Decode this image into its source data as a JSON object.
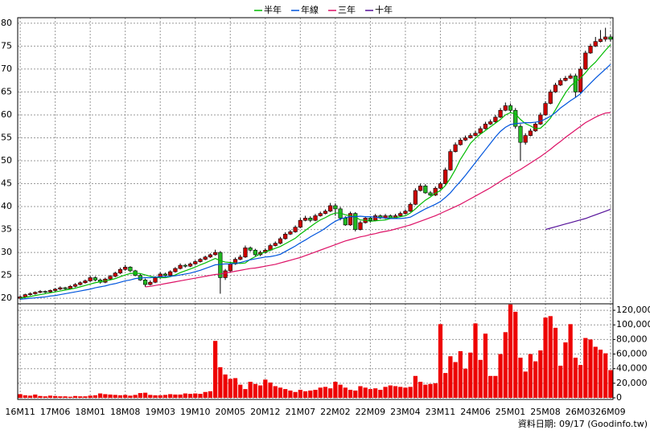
{
  "chart_data": {
    "type": "candlestick",
    "footer": "資料日期: 09/17 (Goodinfo.tw)",
    "grid": true,
    "up_color": "#cc0000",
    "down_color": "#22bb22",
    "ylim": [
      18.8,
      81.2
    ],
    "yticks": [
      20,
      25,
      30,
      35,
      40,
      45,
      50,
      55,
      60,
      65,
      70,
      75,
      80
    ],
    "categories": [
      "16M11",
      null,
      null,
      null,
      null,
      null,
      null,
      "17M06",
      null,
      null,
      null,
      null,
      null,
      null,
      "18M01",
      null,
      null,
      null,
      null,
      null,
      null,
      "18M08",
      null,
      null,
      null,
      null,
      null,
      null,
      "19M03",
      null,
      null,
      null,
      null,
      null,
      null,
      "19M10",
      null,
      null,
      null,
      null,
      null,
      null,
      "20M05",
      null,
      null,
      null,
      null,
      null,
      null,
      "20M12",
      null,
      null,
      null,
      null,
      null,
      null,
      "21M07",
      null,
      null,
      null,
      null,
      null,
      null,
      "22M02",
      null,
      null,
      null,
      null,
      null,
      null,
      "22M09",
      null,
      null,
      null,
      null,
      null,
      null,
      "23M04",
      null,
      null,
      null,
      null,
      null,
      null,
      "23M11",
      null,
      null,
      null,
      null,
      null,
      null,
      "24M06",
      null,
      null,
      null,
      null,
      null,
      null,
      "25M01",
      null,
      null,
      null,
      null,
      null,
      null,
      "25M08",
      null,
      null,
      null,
      null,
      null,
      null,
      "26M03",
      null,
      null,
      null,
      null,
      null,
      "26M09"
    ],
    "open": [
      20.0,
      20.3,
      20.8,
      21.0,
      21.3,
      21.5,
      21.4,
      21.7,
      22.0,
      22.3,
      22.1,
      22.6,
      23.0,
      23.4,
      23.8,
      24.5,
      24.0,
      23.5,
      24.2,
      24.8,
      25.5,
      26.3,
      26.8,
      26.0,
      25.0,
      24.0,
      23.0,
      23.5,
      24.5,
      25.3,
      25.0,
      25.8,
      26.5,
      27.2,
      27.0,
      27.5,
      28.0,
      28.5,
      29.0,
      29.5,
      30.0,
      24.5,
      26.0,
      27.5,
      28.5,
      29.0,
      31.0,
      30.5,
      29.5,
      30.0,
      30.5,
      31.5,
      32.0,
      33.0,
      34.0,
      34.5,
      35.5,
      37.0,
      37.5,
      37.0,
      38.0,
      38.5,
      39.0,
      40.2,
      39.5,
      37.5,
      36.0,
      38.5,
      35.0,
      36.5,
      37.5,
      37.0,
      38.0,
      37.5,
      38.0,
      37.5,
      38.0,
      38.5,
      39.0,
      40.5,
      43.5,
      44.5,
      43.0,
      42.5,
      44.0,
      45.0,
      48.0,
      52.0,
      53.5,
      54.5,
      55.0,
      55.5,
      56.0,
      57.0,
      58.0,
      58.5,
      59.5,
      61.0,
      62.0,
      61.0,
      57.5,
      54.0,
      55.5,
      56.5,
      58.0,
      60.0,
      62.5,
      65.0,
      66.5,
      67.5,
      68.0,
      68.5,
      65.0,
      70.0,
      73.5,
      75.0,
      76.0,
      76.5,
      77.0
    ],
    "high": [
      20.6,
      21.0,
      21.3,
      21.5,
      21.8,
      21.7,
      21.9,
      22.2,
      22.6,
      22.5,
      22.9,
      23.3,
      23.7,
      24.1,
      24.9,
      24.8,
      24.3,
      24.5,
      25.1,
      25.8,
      26.7,
      27.3,
      27.0,
      26.2,
      25.3,
      24.3,
      23.9,
      24.8,
      25.7,
      25.6,
      26.1,
      26.8,
      27.6,
      27.5,
      27.8,
      28.3,
      28.8,
      29.3,
      29.8,
      30.6,
      30.3,
      26.4,
      28.0,
      28.9,
      29.5,
      31.5,
      31.3,
      30.8,
      30.4,
      30.9,
      31.9,
      32.4,
      33.4,
      34.4,
      34.9,
      35.9,
      37.5,
      38.0,
      37.9,
      38.4,
      38.9,
      39.4,
      40.8,
      40.7,
      39.9,
      37.9,
      38.9,
      38.8,
      36.9,
      37.9,
      37.9,
      38.4,
      38.3,
      38.4,
      38.3,
      38.4,
      38.9,
      39.4,
      40.9,
      44.0,
      45.0,
      44.9,
      43.4,
      44.4,
      45.4,
      48.5,
      52.5,
      54.0,
      55.0,
      55.5,
      56.0,
      56.5,
      57.5,
      58.5,
      59.0,
      60.0,
      61.5,
      62.7,
      62.5,
      61.5,
      58.0,
      56.0,
      57.0,
      58.5,
      60.5,
      63.0,
      65.5,
      67.0,
      68.0,
      68.5,
      69.0,
      69.0,
      70.5,
      74.0,
      75.5,
      77.0,
      78.5,
      79.0,
      77.5
    ],
    "low": [
      19.6,
      20.1,
      20.6,
      20.8,
      21.1,
      21.1,
      21.2,
      21.5,
      21.8,
      21.8,
      21.9,
      22.4,
      22.8,
      23.2,
      23.6,
      23.7,
      23.2,
      23.3,
      24.0,
      24.6,
      25.3,
      26.0,
      25.7,
      24.8,
      23.8,
      22.5,
      22.8,
      23.3,
      24.3,
      24.8,
      24.8,
      25.6,
      26.3,
      26.7,
      26.8,
      27.3,
      27.8,
      28.3,
      28.8,
      29.3,
      21.0,
      24.0,
      25.6,
      27.3,
      28.3,
      28.8,
      30.2,
      29.2,
      29.2,
      29.8,
      30.3,
      31.3,
      31.8,
      32.8,
      33.8,
      34.3,
      35.3,
      36.8,
      36.6,
      36.8,
      37.8,
      38.3,
      38.8,
      38.0,
      37.0,
      35.8,
      35.8,
      34.6,
      34.8,
      36.3,
      36.5,
      36.8,
      37.3,
      37.3,
      37.3,
      37.3,
      37.8,
      38.3,
      38.8,
      40.3,
      43.3,
      42.8,
      42.3,
      42.3,
      43.8,
      44.8,
      47.8,
      51.8,
      53.3,
      54.3,
      54.8,
      55.3,
      55.8,
      56.8,
      57.8,
      58.3,
      59.3,
      60.8,
      60.5,
      57.0,
      50.0,
      53.5,
      55.3,
      56.3,
      57.8,
      59.8,
      62.3,
      64.8,
      66.3,
      67.3,
      67.8,
      63.8,
      64.8,
      69.8,
      73.3,
      74.8,
      75.8,
      76.0,
      76.0
    ],
    "close": [
      20.3,
      20.8,
      21.0,
      21.3,
      21.5,
      21.4,
      21.7,
      22.0,
      22.3,
      22.1,
      22.6,
      23.0,
      23.4,
      23.8,
      24.5,
      24.0,
      23.5,
      24.2,
      24.8,
      25.5,
      26.3,
      26.8,
      26.0,
      25.0,
      24.0,
      23.0,
      23.5,
      24.5,
      25.3,
      25.0,
      25.8,
      26.5,
      27.2,
      27.0,
      27.5,
      28.0,
      28.5,
      29.0,
      29.5,
      30.0,
      24.5,
      26.0,
      27.5,
      28.5,
      29.0,
      31.0,
      30.5,
      29.5,
      30.0,
      30.5,
      31.5,
      32.0,
      33.0,
      34.0,
      34.5,
      35.5,
      37.0,
      37.5,
      37.0,
      38.0,
      38.5,
      39.0,
      40.2,
      39.5,
      37.5,
      36.0,
      38.5,
      35.0,
      36.5,
      37.5,
      37.0,
      38.0,
      37.5,
      38.0,
      37.5,
      38.0,
      38.5,
      39.0,
      40.5,
      43.5,
      44.5,
      43.0,
      42.5,
      44.0,
      45.0,
      48.0,
      52.0,
      53.5,
      54.5,
      55.0,
      55.5,
      56.0,
      57.0,
      58.0,
      58.5,
      59.5,
      61.0,
      62.0,
      61.0,
      57.5,
      54.0,
      55.5,
      56.5,
      58.0,
      60.0,
      62.5,
      65.0,
      66.5,
      67.5,
      68.0,
      68.5,
      65.0,
      70.0,
      73.5,
      75.0,
      76.0,
      76.5,
      77.0,
      76.5
    ],
    "series": [
      {
        "name": "半年",
        "color": "#00bb00",
        "values": [
          20.0,
          20.2,
          20.4,
          20.6,
          20.8,
          21.0,
          21.2,
          21.4,
          21.6,
          21.8,
          22.0,
          22.2,
          22.5,
          22.8,
          23.1,
          23.4,
          23.6,
          23.8,
          24.0,
          24.3,
          24.7,
          25.1,
          25.4,
          25.5,
          25.4,
          25.1,
          24.8,
          24.6,
          24.5,
          24.5,
          24.7,
          25.1,
          25.6,
          26.0,
          26.4,
          26.8,
          27.3,
          27.7,
          28.2,
          28.7,
          28.2,
          27.9,
          27.8,
          27.7,
          27.6,
          27.7,
          28.5,
          29.1,
          29.7,
          30.1,
          30.5,
          30.9,
          31.3,
          31.9,
          32.5,
          33.1,
          34.0,
          34.8,
          35.6,
          36.4,
          37.1,
          37.6,
          38.2,
          38.6,
          38.6,
          38.2,
          38.0,
          37.7,
          37.1,
          37.0,
          36.8,
          36.9,
          37.0,
          37.1,
          37.4,
          37.6,
          37.8,
          38.0,
          38.6,
          39.5,
          40.5,
          41.4,
          42.1,
          42.9,
          43.5,
          44.6,
          46.2,
          48.1,
          50.3,
          52.0,
          53.8,
          54.9,
          55.8,
          56.6,
          57.4,
          58.2,
          59.0,
          60.0,
          60.5,
          60.2,
          59.0,
          58.1,
          57.6,
          57.0,
          57.1,
          58.1,
          59.3,
          61.1,
          63.0,
          64.8,
          66.3,
          67.2,
          68.0,
          69.2,
          70.5,
          71.5,
          72.8,
          74.1,
          75.3
        ]
      },
      {
        "name": "年線",
        "color": "#0055dd",
        "values": [
          19.8,
          19.9,
          20.0,
          20.1,
          20.2,
          20.3,
          20.5,
          20.6,
          20.8,
          21.0,
          21.2,
          21.4,
          21.6,
          21.8,
          22.0,
          22.3,
          22.5,
          22.7,
          23.0,
          23.2,
          23.5,
          23.8,
          24.0,
          24.3,
          24.4,
          24.5,
          24.5,
          24.6,
          24.7,
          24.7,
          24.8,
          24.9,
          25.1,
          25.3,
          25.5,
          25.8,
          26.1,
          26.5,
          26.9,
          27.3,
          27.4,
          27.5,
          27.5,
          27.6,
          27.8,
          28.1,
          28.4,
          28.6,
          28.8,
          29.0,
          29.1,
          29.3,
          29.6,
          30.2,
          30.8,
          31.4,
          32.1,
          32.7,
          33.4,
          34.0,
          34.6,
          35.3,
          36.1,
          36.8,
          37.3,
          37.6,
          37.8,
          37.8,
          37.9,
          37.8,
          37.8,
          37.7,
          37.6,
          37.5,
          37.4,
          37.4,
          37.4,
          37.5,
          37.7,
          38.3,
          38.9,
          39.5,
          40.0,
          40.5,
          41.1,
          42.0,
          43.0,
          44.3,
          45.5,
          46.8,
          48.2,
          49.6,
          51.0,
          52.4,
          53.8,
          55.2,
          56.4,
          57.3,
          57.9,
          58.1,
          58.2,
          58.3,
          58.3,
          58.4,
          58.6,
          59.1,
          59.7,
          60.5,
          61.5,
          62.3,
          63.1,
          63.8,
          64.6,
          65.8,
          66.9,
          68.0,
          69.0,
          70.0,
          71.0
        ]
      },
      {
        "name": "三年",
        "color": "#dd1166",
        "values": [
          null,
          null,
          null,
          null,
          null,
          null,
          null,
          null,
          null,
          null,
          null,
          null,
          null,
          null,
          null,
          null,
          null,
          null,
          null,
          null,
          null,
          null,
          null,
          null,
          null,
          22.5,
          22.6,
          22.8,
          23.0,
          23.2,
          23.4,
          23.6,
          23.8,
          24.0,
          24.2,
          24.4,
          24.6,
          24.8,
          25.0,
          25.2,
          25.3,
          25.5,
          25.7,
          25.9,
          26.1,
          26.3,
          26.5,
          26.6,
          26.8,
          27.0,
          27.2,
          27.4,
          27.7,
          28.0,
          28.3,
          28.6,
          28.9,
          29.3,
          29.7,
          30.1,
          30.5,
          30.9,
          31.3,
          31.7,
          32.1,
          32.5,
          32.8,
          33.1,
          33.4,
          33.6,
          33.9,
          34.1,
          34.4,
          34.6,
          34.8,
          35.1,
          35.4,
          35.7,
          36.0,
          36.4,
          36.8,
          37.2,
          37.6,
          38.0,
          38.5,
          39.0,
          39.5,
          40.0,
          40.5,
          41.1,
          41.7,
          42.3,
          42.9,
          43.5,
          44.1,
          44.8,
          45.5,
          46.2,
          46.8,
          47.5,
          48.1,
          48.8,
          49.5,
          50.2,
          50.9,
          51.7,
          52.5,
          53.4,
          54.2,
          55.1,
          55.9,
          56.7,
          57.5,
          58.3,
          58.9,
          59.5,
          60.0,
          60.4,
          60.5
        ]
      },
      {
        "name": "十年",
        "color": "#551199",
        "values": [
          null,
          null,
          null,
          null,
          null,
          null,
          null,
          null,
          null,
          null,
          null,
          null,
          null,
          null,
          null,
          null,
          null,
          null,
          null,
          null,
          null,
          null,
          null,
          null,
          null,
          null,
          null,
          null,
          null,
          null,
          null,
          null,
          null,
          null,
          null,
          null,
          null,
          null,
          null,
          null,
          null,
          null,
          null,
          null,
          null,
          null,
          null,
          null,
          null,
          null,
          null,
          null,
          null,
          null,
          null,
          null,
          null,
          null,
          null,
          null,
          null,
          null,
          null,
          null,
          null,
          null,
          null,
          null,
          null,
          null,
          null,
          null,
          null,
          null,
          null,
          null,
          null,
          null,
          null,
          null,
          null,
          null,
          null,
          null,
          null,
          null,
          null,
          null,
          null,
          null,
          null,
          null,
          null,
          null,
          null,
          null,
          null,
          null,
          null,
          null,
          null,
          null,
          null,
          null,
          null,
          35.0,
          35.3,
          35.6,
          35.9,
          36.2,
          36.5,
          36.8,
          37.1,
          37.4,
          37.8,
          38.2,
          38.6,
          39.0,
          39.4
        ]
      }
    ],
    "volume": {
      "color": "#ee0000",
      "y2lim": [
        0,
        130000
      ],
      "y2ticks": [
        0,
        {
          "value": 20000,
          "label": "20,000"
        },
        {
          "value": 40000,
          "label": "40,000"
        },
        {
          "value": 60000,
          "label": "60,000"
        },
        {
          "value": 80000,
          "label": "80,000"
        },
        {
          "value": 100000,
          "label": "100,000"
        },
        {
          "value": 120000,
          "label": "120,000"
        }
      ],
      "values": [
        5000,
        3500,
        3000,
        4500,
        2500,
        2000,
        3000,
        2500,
        2000,
        2000,
        1500,
        2500,
        2000,
        2000,
        3000,
        3500,
        6000,
        5000,
        4500,
        4000,
        3500,
        4000,
        3000,
        4000,
        6500,
        7000,
        4000,
        3500,
        3500,
        4000,
        5000,
        4500,
        4500,
        6000,
        5500,
        6000,
        5500,
        8000,
        9000,
        78000,
        42000,
        32000,
        26000,
        27000,
        18000,
        12000,
        22000,
        19000,
        17000,
        25000,
        21000,
        16000,
        14000,
        12000,
        10000,
        8000,
        11000,
        9000,
        10000,
        11000,
        14000,
        15000,
        13000,
        22000,
        18000,
        14000,
        11000,
        10000,
        16000,
        14000,
        12000,
        13000,
        11000,
        15000,
        17000,
        16000,
        15000,
        14000,
        15000,
        30000,
        22000,
        18000,
        19000,
        20000,
        101000,
        34000,
        57000,
        49000,
        64000,
        40000,
        62000,
        102000,
        52000,
        88000,
        30000,
        30000,
        60000,
        90000,
        128000,
        118000,
        55000,
        36000,
        60000,
        50000,
        65000,
        110000,
        112000,
        96000,
        44000,
        76000,
        101000,
        55000,
        45000,
        82000,
        80000,
        70000,
        66000,
        61000,
        38000
      ]
    }
  }
}
